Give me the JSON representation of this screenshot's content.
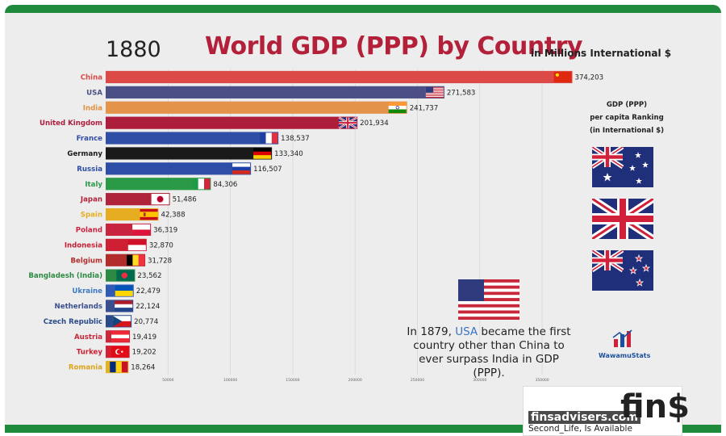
{
  "header": {
    "year": "1880",
    "title": "World GDP (PPP) by Country",
    "units": "in Millions International $"
  },
  "chart_data": {
    "type": "bar",
    "orientation": "horizontal",
    "categories": [
      "China",
      "USA",
      "India",
      "United Kingdom",
      "France",
      "Germany",
      "Russia",
      "Italy",
      "Japan",
      "Spain",
      "Poland",
      "Indonesia",
      "Belgium",
      "Bangladesh (India)",
      "Ukraine",
      "Netherlands",
      "Czech Republic",
      "Austria",
      "Turkey",
      "Romania"
    ],
    "values": [
      374203,
      271583,
      241737,
      201934,
      138537,
      133340,
      116507,
      84306,
      51486,
      42388,
      36319,
      32870,
      31728,
      23562,
      22479,
      22124,
      20774,
      19419,
      19202,
      18264
    ],
    "value_labels": [
      "374,203",
      "271,583",
      "241,737",
      "201,934",
      "138,537",
      "133,340",
      "116,507",
      "84,306",
      "51,486",
      "42,388",
      "36,319",
      "32,870",
      "31,728",
      "23,562",
      "22,479",
      "22,124",
      "20,774",
      "19,419",
      "19,202",
      "18,264"
    ],
    "bar_colors": [
      "#dc4a47",
      "#4b4f86",
      "#e3944a",
      "#ad1e3d",
      "#2f4ea5",
      "#1a1a1a",
      "#2e4da6",
      "#2a9a47",
      "#b0243b",
      "#e6ad22",
      "#c9243f",
      "#cf1f33",
      "#b22c2c",
      "#2d8a43",
      "#2f5bb7",
      "#3a4f8f",
      "#2a4a8a",
      "#c8283a",
      "#d02234",
      "#e2b21f"
    ],
    "label_colors": [
      "#d84a46",
      "#4a4f86",
      "#e0913f",
      "#ad1e3d",
      "#2f4ea5",
      "#1a1a1a",
      "#2e4da6",
      "#2a9a47",
      "#b0243b",
      "#e6ad22",
      "#c9243f",
      "#c41f33",
      "#b22c2c",
      "#2d8a43",
      "#3d7ac2",
      "#3a4f8f",
      "#2a4a8a",
      "#c8283a",
      "#c91f32",
      "#d9a51c"
    ],
    "flags": [
      "china-flag",
      "usa-flag",
      "india-flag",
      "uk-flag",
      "france-flag",
      "germany-flag",
      "russia-flag",
      "italy-flag",
      "japan-flag",
      "spain-flag",
      "poland-flag",
      "indonesia-flag",
      "belgium-flag",
      "bangladesh-flag",
      "ukraine-flag",
      "netherlands-flag",
      "czech-flag",
      "austria-flag",
      "turkey-flag",
      "romania-flag"
    ],
    "xlim": [
      0,
      380000
    ],
    "xticks": [
      50000,
      100000,
      150000,
      200000,
      250000,
      300000,
      350000
    ],
    "xtick_labels": [
      "50000",
      "100000",
      "150000",
      "200000",
      "250000",
      "300000",
      "350000"
    ],
    "grid": true
  },
  "sidebar": {
    "ranking_title_lines": [
      "GDP (PPP)",
      "per capita Ranking",
      "(in International $)"
    ],
    "ranking_flags": [
      "australia-flag",
      "uk-flag",
      "new-zealand-flag"
    ]
  },
  "annotation": {
    "flag": "usa-flag",
    "line1_pre": "In 1879, ",
    "line1_highlight": "USA",
    "line1_post": " became the first",
    "line2": "country other than China to",
    "line3": "ever surpass India in GDP (PPP)."
  },
  "brand": {
    "name": "WawamuStats"
  },
  "watermark": {
    "site": "finsadvisers.com",
    "tagline": "Second_Life, Is Available",
    "logo": "fin$"
  },
  "colors": {
    "frame_green": "#1f8a3b",
    "title_red": "#b3203a",
    "highlight_blue": "#3a73c4"
  }
}
